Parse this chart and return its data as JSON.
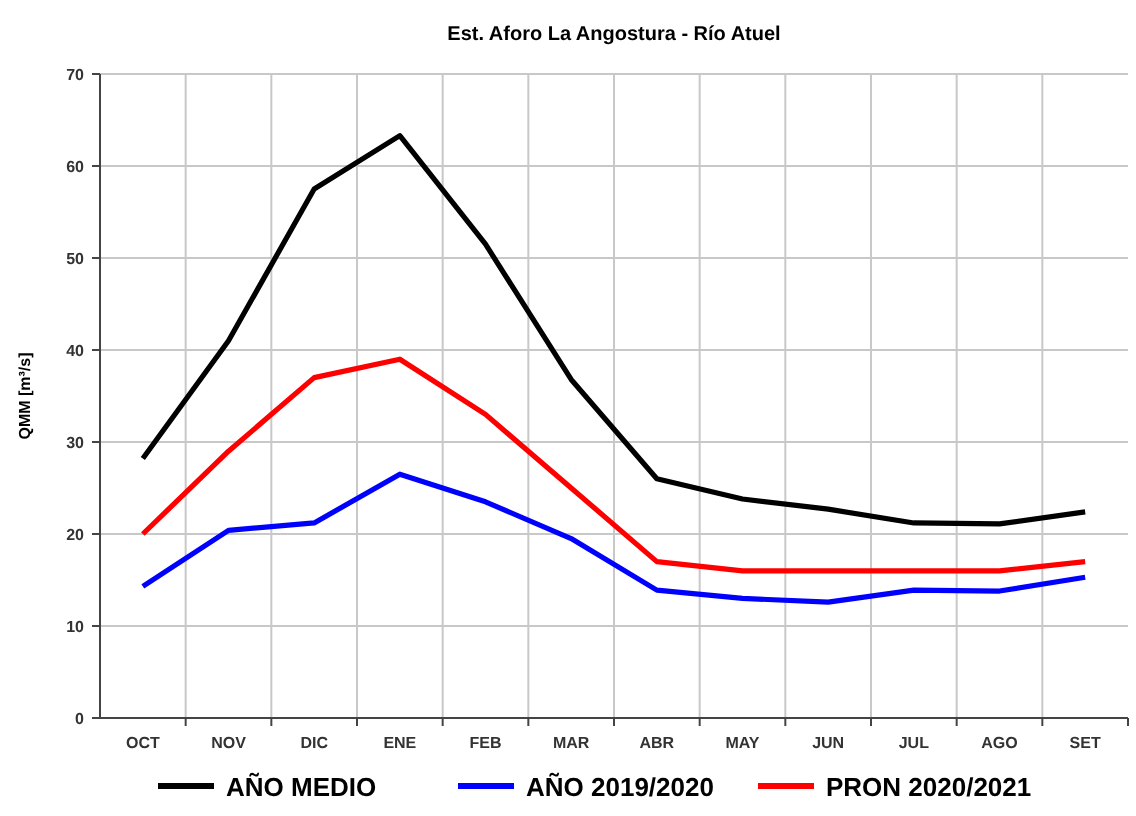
{
  "chart_data": {
    "type": "line",
    "title": "Est. Aforo La Angostura - Río Atuel",
    "ylabel": "QMM [m³/s]",
    "categories": [
      "OCT",
      "NOV",
      "DIC",
      "ENE",
      "FEB",
      "MAR",
      "ABR",
      "MAY",
      "JUN",
      "JUL",
      "AGO",
      "SET"
    ],
    "series": [
      {
        "name": "AÑO MEDIO",
        "color": "#000000",
        "values": [
          28.2,
          41,
          57.5,
          63.3,
          51.5,
          36.8,
          26,
          23.8,
          22.7,
          21.2,
          21.1,
          22.4
        ]
      },
      {
        "name": "AÑO 2019/2020",
        "color": "#0000ff",
        "values": [
          14.3,
          20.4,
          21.2,
          26.5,
          23.5,
          19.5,
          13.9,
          13,
          12.6,
          13.9,
          13.8,
          15.3
        ]
      },
      {
        "name": "PRON 2020/2021",
        "color": "#ff0000",
        "values": [
          20,
          29,
          37,
          39,
          33,
          25,
          17,
          16,
          16,
          16,
          16,
          17
        ]
      }
    ],
    "ylim": [
      0,
      70
    ],
    "yticks": [
      0,
      10,
      20,
      30,
      40,
      50,
      60,
      70
    ],
    "grid": true,
    "legend": "bottom",
    "marker": "none",
    "line_style": "solid"
  }
}
